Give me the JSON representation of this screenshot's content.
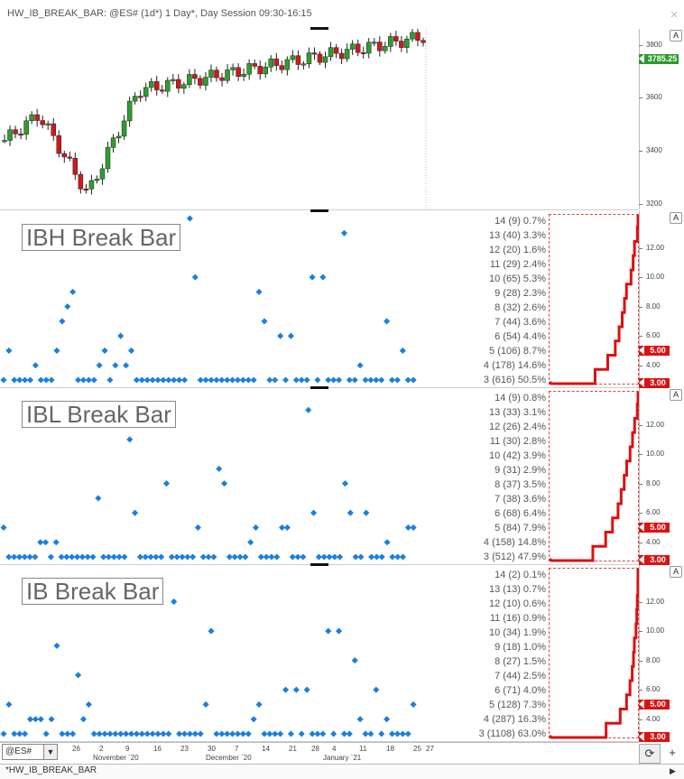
{
  "window": {
    "title": "HW_IB_BREAK_BAR: @ES# (1d*) 1 Day*, Day Session 09:30-16:15",
    "close_glyph": "✕",
    "panel_toggle": "A"
  },
  "price_pane": {
    "axis_ticks": [
      "3800",
      "3600",
      "3400",
      "3200"
    ],
    "last_price": "3785.25",
    "price_range": [
      3180,
      3860
    ]
  },
  "indicator_panes": [
    {
      "label": "IBH Break Bar",
      "stats": [
        "14 (9) 0.7%",
        "13 (40) 3.3%",
        "12 (20) 1.6%",
        "11 (29) 2.4%",
        "10 (65) 5.3%",
        "9 (28) 2.3%",
        "8 (32) 2.6%",
        "7 (44) 3.6%",
        "6 (54) 4.4%",
        "5 (106) 8.7%",
        "4 (178) 14.6%",
        "3 (616) 50.5%"
      ],
      "values": [
        3,
        5,
        3,
        3,
        3,
        3,
        4,
        3,
        3,
        3,
        5,
        7,
        8,
        9,
        3,
        3,
        3,
        3,
        4,
        5,
        3,
        4,
        6,
        4,
        5,
        3,
        3,
        3,
        3,
        3,
        3,
        3,
        3,
        3,
        3,
        14,
        10,
        3,
        3,
        3,
        3,
        3,
        3,
        3,
        3,
        3,
        3,
        3,
        9,
        7,
        3,
        3,
        6,
        3,
        6,
        3,
        3,
        3,
        10,
        3,
        10,
        3,
        3,
        3,
        13,
        3,
        3,
        4,
        3,
        3,
        3,
        3,
        7,
        3,
        3,
        5,
        3,
        3
      ],
      "axis_ticks": [
        "12.00",
        "10.00",
        "8.00",
        "6.00",
        "4.00"
      ],
      "flag_high": "5.00",
      "flag_low": "3.00"
    },
    {
      "label": "IBL Break Bar",
      "stats": [
        "14 (9) 0.8%",
        "13 (33) 3.1%",
        "12 (26) 2.4%",
        "11 (30) 2.8%",
        "10 (42) 3.9%",
        "9 (31) 2.9%",
        "8 (37) 3.5%",
        "7 (38) 3.6%",
        "6 (68) 6.4%",
        "5 (84) 7.9%",
        "4 (158) 14.8%",
        "3 (512) 47.9%"
      ],
      "values": [
        5,
        3,
        3,
        3,
        3,
        3,
        3,
        4,
        4,
        3,
        4,
        3,
        3,
        3,
        3,
        3,
        3,
        3,
        7,
        3,
        3,
        3,
        3,
        3,
        11,
        6,
        3,
        3,
        3,
        3,
        3,
        8,
        3,
        3,
        3,
        3,
        3,
        5,
        3,
        3,
        3,
        9,
        8,
        3,
        3,
        3,
        3,
        4,
        5,
        3,
        3,
        3,
        3,
        5,
        5,
        3,
        3,
        3,
        13,
        6,
        3,
        3,
        3,
        3,
        3,
        8,
        6,
        3,
        3,
        6,
        3,
        3,
        3,
        4,
        3,
        3,
        3,
        5,
        5
      ],
      "axis_ticks": [
        "12.00",
        "10.00",
        "8.00",
        "6.00",
        "4.00"
      ],
      "flag_high": "5.00",
      "flag_low": "3.00"
    },
    {
      "label": "IB Break Bar",
      "stats": [
        "14 (2) 0.1%",
        "13 (13) 0.7%",
        "12 (10) 0.6%",
        "11 (16) 0.9%",
        "10 (34) 1.9%",
        "9 (18) 1.0%",
        "8 (27) 1.5%",
        "7 (44) 2.5%",
        "6 (71) 4.0%",
        "5 (128) 7.3%",
        "4 (287) 16.3%",
        "3 (1108) 63.0%"
      ],
      "values": [
        3,
        5,
        3,
        3,
        3,
        4,
        4,
        4,
        3,
        4,
        9,
        3,
        3,
        3,
        7,
        4,
        5,
        3,
        3,
        3,
        3,
        3,
        3,
        3,
        3,
        3,
        3,
        3,
        3,
        3,
        3,
        3,
        12,
        3,
        3,
        3,
        3,
        3,
        5,
        10,
        3,
        3,
        3,
        3,
        3,
        3,
        3,
        4,
        5,
        3,
        3,
        3,
        3,
        6,
        3,
        6,
        3,
        6,
        3,
        3,
        3,
        10,
        3,
        10,
        3,
        3,
        8,
        4,
        3,
        3,
        6,
        3,
        4,
        3,
        3,
        3,
        3,
        5
      ],
      "axis_ticks": [
        "12.00",
        "10.00",
        "8.00",
        "6.00",
        "4.00"
      ],
      "flag_high": "5.00",
      "flag_low": "3.00"
    }
  ],
  "x_axis": {
    "ticks": [
      "26",
      "2",
      "9",
      "16",
      "23",
      "30",
      "7",
      "14",
      "21",
      "28",
      "4",
      "11",
      "18",
      "25",
      "27"
    ],
    "months": [
      "November `20",
      "December `20",
      "January `21"
    ]
  },
  "footer": {
    "symbol": "@ES#",
    "dropdown_glyph": "▼",
    "tab_label": "*HW_IB_BREAK_BAR",
    "refresh_glyph": "⟳",
    "add_glyph": "+",
    "scroll_glyph": "▶"
  },
  "colors": {
    "up_candle": "#2e9e2e",
    "down_candle": "#cc1a1a",
    "dot": "#1a7fe0",
    "distribution_line": "#dd1010",
    "flag": "#d11111",
    "price_flag": "#2a9a2a"
  }
}
